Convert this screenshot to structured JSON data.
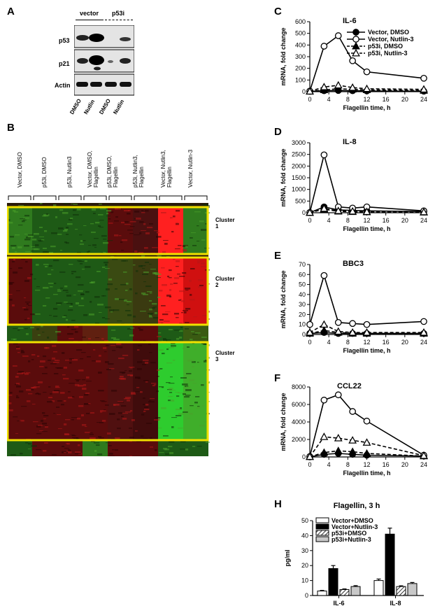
{
  "panels": {
    "A": "A",
    "B": "B",
    "C": "C",
    "D": "D",
    "E": "E",
    "F": "F",
    "H": "H"
  },
  "blot": {
    "group_labels": [
      "vector",
      "p53i"
    ],
    "row_labels": [
      "p53",
      "p21",
      "Actin"
    ],
    "lane_labels": [
      "DMSO",
      "Nutlin",
      "DMSO",
      "Nutlin"
    ]
  },
  "heatmap": {
    "column_labels": [
      "Vector, DMSO",
      "p53i, DMSO",
      "p53i, Nutlin3",
      "Vector, DMSO,\nFlagellin",
      "p53i, DMSO,\nFlagellin",
      "p53i, Nutlin3,\nFlagellin",
      "Vector, Nutlin3,\nFlagellin",
      "Vector, Nutlin-3"
    ],
    "clusters": [
      "Cluster 1",
      "Cluster 2",
      "Cluster 3"
    ],
    "highlight_color": "#f0e000"
  },
  "chart_data": [
    {
      "type": "line",
      "title": "IL-6",
      "xlabel": "Flagellin time, h",
      "ylabel": "mRNA, fold change",
      "xlim": [
        0,
        24
      ],
      "ylim": [
        0,
        600
      ],
      "xticks": [
        0,
        4,
        8,
        12,
        16,
        20,
        24
      ],
      "yticks": [
        0,
        100,
        200,
        300,
        400,
        500,
        600
      ],
      "legend_position": "top-right",
      "series": [
        {
          "name": "Vector, DMSO",
          "marker": "filled-circle",
          "dash": false,
          "x": [
            0,
            3,
            6,
            9,
            12,
            24
          ],
          "y": [
            3,
            8,
            10,
            8,
            6,
            4
          ]
        },
        {
          "name": "Vector, Nutlin-3",
          "marker": "open-circle",
          "dash": false,
          "x": [
            0,
            3,
            6,
            9,
            12,
            24
          ],
          "y": [
            5,
            390,
            480,
            265,
            170,
            115
          ]
        },
        {
          "name": "p53i, DMSO",
          "marker": "filled-triangle",
          "dash": true,
          "x": [
            0,
            3,
            6,
            9,
            12,
            24
          ],
          "y": [
            2,
            15,
            25,
            20,
            15,
            10
          ]
        },
        {
          "name": "p53i, Nutlin-3",
          "marker": "open-triangle",
          "dash": true,
          "x": [
            0,
            3,
            6,
            9,
            12,
            24
          ],
          "y": [
            3,
            40,
            55,
            35,
            25,
            20
          ]
        }
      ]
    },
    {
      "type": "line",
      "title": "IL-8",
      "xlabel": "Flagellin time, h",
      "ylabel": "mRNA, fold change",
      "xlim": [
        0,
        24
      ],
      "ylim": [
        0,
        3000
      ],
      "xticks": [
        0,
        4,
        8,
        12,
        16,
        20,
        24
      ],
      "yticks": [
        0,
        500,
        1000,
        1500,
        2000,
        2500,
        3000
      ],
      "series": [
        {
          "name": "Vector, DMSO",
          "marker": "filled-circle",
          "dash": false,
          "x": [
            0,
            3,
            6,
            9,
            12,
            24
          ],
          "y": [
            5,
            250,
            120,
            100,
            80,
            50
          ]
        },
        {
          "name": "Vector, Nutlin-3",
          "marker": "open-circle",
          "dash": false,
          "x": [
            0,
            3,
            6,
            9,
            12,
            24
          ],
          "y": [
            10,
            2480,
            250,
            200,
            250,
            80
          ]
        },
        {
          "name": "p53i, DMSO",
          "marker": "filled-triangle",
          "dash": true,
          "x": [
            0,
            3,
            6,
            9,
            12,
            24
          ],
          "y": [
            5,
            150,
            60,
            40,
            30,
            20
          ]
        },
        {
          "name": "p53i, Nutlin-3",
          "marker": "open-triangle",
          "dash": true,
          "x": [
            0,
            3,
            6,
            9,
            12,
            24
          ],
          "y": [
            5,
            180,
            80,
            60,
            40,
            30
          ]
        }
      ]
    },
    {
      "type": "line",
      "title": "BBC3",
      "xlabel": "Flagellin time, h",
      "ylabel": "mRNA, fold change",
      "xlim": [
        0,
        24
      ],
      "ylim": [
        0,
        70
      ],
      "xticks": [
        0,
        4,
        8,
        12,
        16,
        20,
        24
      ],
      "yticks": [
        0,
        10,
        20,
        30,
        40,
        50,
        60,
        70
      ],
      "series": [
        {
          "name": "Vector, DMSO",
          "marker": "filled-circle",
          "dash": false,
          "x": [
            0,
            3,
            6,
            9,
            12,
            24
          ],
          "y": [
            1,
            2,
            1,
            1,
            1,
            1
          ]
        },
        {
          "name": "Vector, Nutlin-3",
          "marker": "open-circle",
          "dash": false,
          "x": [
            0,
            3,
            6,
            9,
            12,
            24
          ],
          "y": [
            10,
            59,
            12,
            11,
            10,
            13
          ]
        },
        {
          "name": "p53i, DMSO",
          "marker": "filled-triangle",
          "dash": true,
          "x": [
            0,
            3,
            6,
            9,
            12,
            24
          ],
          "y": [
            1,
            4,
            2,
            1,
            1,
            1
          ]
        },
        {
          "name": "p53i, Nutlin-3",
          "marker": "open-triangle",
          "dash": true,
          "x": [
            0,
            3,
            6,
            9,
            12,
            24
          ],
          "y": [
            2,
            10,
            3,
            2,
            2,
            2
          ]
        }
      ]
    },
    {
      "type": "line",
      "title": "CCL22",
      "xlabel": "Flagellin time, h",
      "ylabel": "mRNA, fold change",
      "xlim": [
        0,
        24
      ],
      "ylim": [
        0,
        8000
      ],
      "xticks": [
        0,
        4,
        8,
        12,
        16,
        20,
        24
      ],
      "yticks": [
        0,
        2000,
        4000,
        6000,
        8000
      ],
      "series": [
        {
          "name": "Vector, DMSO",
          "marker": "filled-circle",
          "dash": false,
          "x": [
            0,
            3,
            6,
            9,
            12,
            24
          ],
          "y": [
            10,
            300,
            400,
            300,
            200,
            100
          ]
        },
        {
          "name": "Vector, Nutlin-3",
          "marker": "open-circle",
          "dash": false,
          "x": [
            0,
            3,
            6,
            9,
            12,
            24
          ],
          "y": [
            50,
            6500,
            7100,
            5200,
            4100,
            200
          ]
        },
        {
          "name": "p53i, DMSO",
          "marker": "filled-triangle",
          "dash": true,
          "x": [
            0,
            3,
            6,
            9,
            12,
            24
          ],
          "y": [
            20,
            500,
            700,
            600,
            400,
            100
          ]
        },
        {
          "name": "p53i, Nutlin-3",
          "marker": "open-triangle",
          "dash": true,
          "x": [
            0,
            3,
            6,
            9,
            12,
            24
          ],
          "y": [
            30,
            2300,
            2150,
            1900,
            1650,
            150
          ]
        }
      ]
    },
    {
      "type": "bar",
      "title": "Flagellin, 3 h",
      "ylabel": "pg/ml",
      "categories": [
        "IL-6",
        "IL-8"
      ],
      "ylim": [
        0,
        50
      ],
      "yticks": [
        0,
        10,
        20,
        30,
        40,
        50
      ],
      "legend_position": "top-left",
      "series": [
        {
          "name": "Vector+DMSO",
          "fill": "white",
          "values": [
            3,
            10
          ],
          "errors": [
            0.4,
            1
          ]
        },
        {
          "name": "Vector+Nutlin-3",
          "fill": "black",
          "values": [
            18,
            41
          ],
          "errors": [
            2,
            4
          ]
        },
        {
          "name": "p53i+DMSO",
          "fill": "hatch",
          "values": [
            4,
            6
          ],
          "errors": [
            0.4,
            0.5
          ]
        },
        {
          "name": "p53i+Nutlin-3",
          "fill": "gray",
          "values": [
            6,
            8
          ],
          "errors": [
            0.6,
            0.7
          ]
        }
      ]
    }
  ]
}
